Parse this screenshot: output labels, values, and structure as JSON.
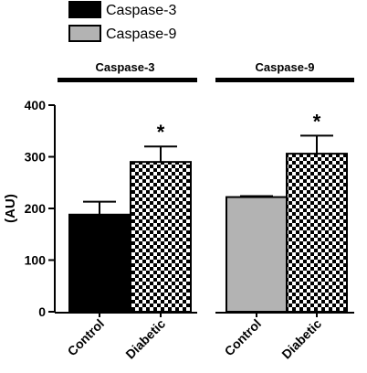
{
  "chart_data": {
    "type": "bar",
    "title": "",
    "xlabel": "",
    "ylabel": "(AU)",
    "ylim": [
      0,
      400
    ],
    "yticks": [
      0,
      100,
      200,
      300,
      400
    ],
    "grid": false,
    "legend_position": "top-left",
    "legend": [
      {
        "name": "Caspase-3",
        "color": "#000000"
      },
      {
        "name": "Caspase-9",
        "color": "#b3b3b3"
      }
    ],
    "groups": [
      {
        "label": "Caspase-3",
        "bars": [
          {
            "category": "Control",
            "value": 188,
            "error": 25,
            "fill": "solid",
            "color": "#000000",
            "significance": ""
          },
          {
            "category": "Diabetic",
            "value": 290,
            "error": 30,
            "fill": "checker",
            "color": "#000000",
            "significance": "*"
          }
        ]
      },
      {
        "label": "Caspase-9",
        "bars": [
          {
            "category": "Control",
            "value": 222,
            "error": 2,
            "fill": "solid",
            "color": "#b3b3b3",
            "significance": ""
          },
          {
            "category": "Diabetic",
            "value": 306,
            "error": 35,
            "fill": "checker",
            "color": "#000000",
            "significance": "*"
          }
        ]
      }
    ]
  }
}
